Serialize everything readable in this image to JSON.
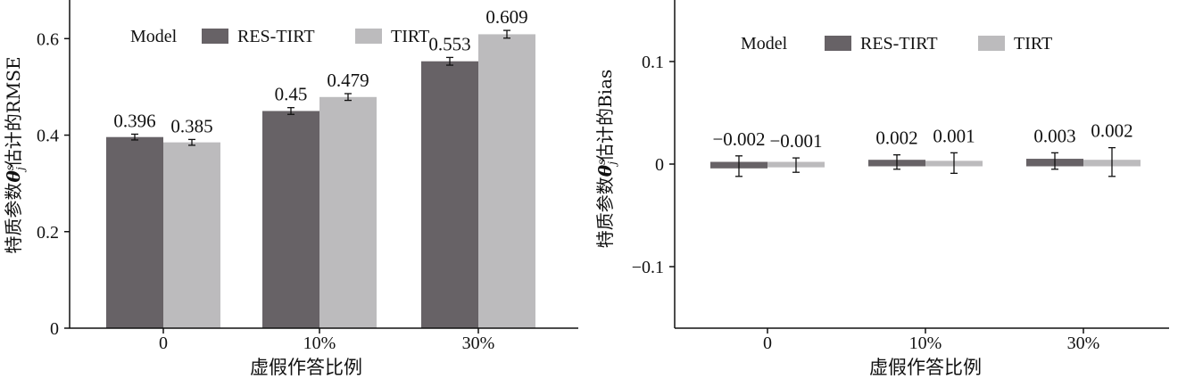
{
  "chart_data": [
    {
      "type": "bar",
      "categories": [
        "0",
        "10%",
        "30%"
      ],
      "series": [
        {
          "name": "RES-TIRT",
          "values": [
            0.396,
            0.45,
            0.553
          ],
          "errors": [
            0.006,
            0.007,
            0.008
          ],
          "color": "#676266"
        },
        {
          "name": "TIRT",
          "values": [
            0.385,
            0.479,
            0.609
          ],
          "errors": [
            0.006,
            0.007,
            0.008
          ],
          "color": "#bcbbbd"
        }
      ],
      "value_labels": [
        [
          "0.396",
          "0.45",
          "0.553"
        ],
        [
          "0.385",
          "0.479",
          "0.609"
        ]
      ],
      "legend_title": "Model",
      "xlabel": "虚假作答比例",
      "ylabel_pre": "特质参数",
      "ylabel_sym": "θ",
      "ylabel_sub": "s",
      "ylabel_sup": "j",
      "ylabel_post": "估计的RMSE",
      "ylim": [
        0,
        0.68
      ],
      "yticks": [
        0,
        0.2,
        0.4,
        0.6
      ],
      "ytick_labels": [
        "0",
        "0.2",
        "0.4",
        "0.6"
      ],
      "legend_position": "top-left",
      "grid": false
    },
    {
      "type": "bar",
      "categories": [
        "0",
        "10%",
        "30%"
      ],
      "series": [
        {
          "name": "RES-TIRT",
          "values": [
            -0.002,
            0.002,
            0.003
          ],
          "errors": [
            0.01,
            0.007,
            0.008
          ],
          "color": "#676266"
        },
        {
          "name": "TIRT",
          "values": [
            -0.001,
            0.001,
            0.002
          ],
          "errors": [
            0.007,
            0.01,
            0.014
          ],
          "color": "#bcbbbd"
        }
      ],
      "value_labels": [
        [
          "−0.002",
          "0.002",
          "0.003"
        ],
        [
          "−0.001",
          "0.001",
          "0.002"
        ]
      ],
      "legend_title": "Model",
      "xlabel": "虚假作答比例",
      "ylabel_pre": "特质参数",
      "ylabel_sym": "θ",
      "ylabel_sub": "s",
      "ylabel_sup": "j",
      "ylabel_post": "估计的Bias",
      "ylim": [
        -0.16,
        0.16
      ],
      "yticks": [
        -0.1,
        0,
        0.1
      ],
      "ytick_labels": [
        "−0.1",
        "0",
        "0.1"
      ],
      "legend_position": "top-left",
      "grid": false
    }
  ]
}
